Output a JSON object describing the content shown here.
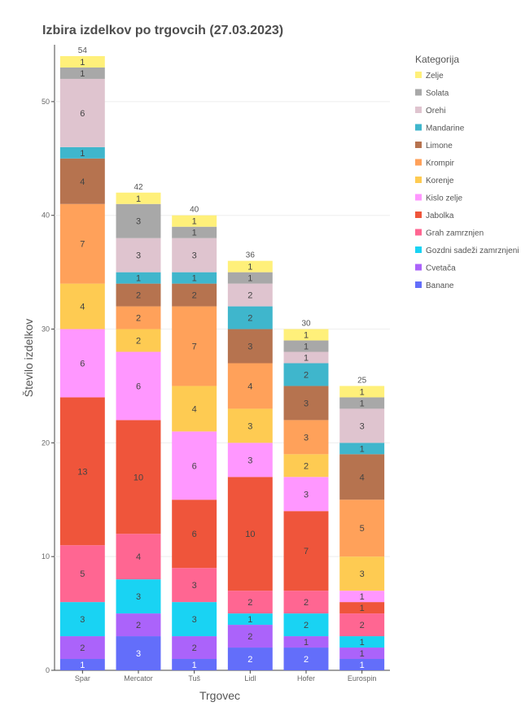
{
  "chart_data": {
    "type": "bar",
    "stacked": true,
    "title": "Izbira izdelkov po trgovcih (27.03.2023)",
    "xlabel": "Trgovec",
    "ylabel": "Število izdelkov",
    "ylim": [
      0,
      55
    ],
    "yticks": [
      0,
      10,
      20,
      30,
      40,
      50
    ],
    "grid": true,
    "legend_title": "Kategorija",
    "legend_position": "right",
    "categories": [
      "Spar",
      "Mercator",
      "Tuš",
      "Lidl",
      "Hofer",
      "Eurospin"
    ],
    "totals": [
      54,
      42,
      40,
      36,
      30,
      25
    ],
    "series": [
      {
        "name": "Banane",
        "color": "#636efa",
        "values": [
          1,
          3,
          1,
          2,
          2,
          1
        ]
      },
      {
        "name": "Cvetača",
        "color": "#ab63fa",
        "values": [
          2,
          2,
          2,
          2,
          1,
          1
        ]
      },
      {
        "name": "Gozdni sadeži zamrznjeni",
        "color": "#19d3f3",
        "values": [
          3,
          3,
          3,
          1,
          2,
          1
        ]
      },
      {
        "name": "Grah zamrznjen",
        "color": "#ff6692",
        "values": [
          5,
          4,
          3,
          2,
          2,
          2
        ]
      },
      {
        "name": "Jabolka",
        "color": "#ef553b",
        "values": [
          13,
          10,
          6,
          10,
          7,
          1
        ]
      },
      {
        "name": "Kislo zelje",
        "color": "#ff97ff",
        "values": [
          6,
          6,
          6,
          3,
          3,
          1
        ]
      },
      {
        "name": "Korenje",
        "color": "#fecb52",
        "values": [
          4,
          2,
          4,
          3,
          2,
          3
        ]
      },
      {
        "name": "Krompir",
        "color": "#ffa15a",
        "values": [
          7,
          2,
          7,
          4,
          3,
          5
        ]
      },
      {
        "name": "Limone",
        "color": "#b6734f",
        "values": [
          4,
          2,
          2,
          3,
          3,
          4
        ]
      },
      {
        "name": "Mandarine",
        "color": "#3fb6cc",
        "values": [
          1,
          1,
          1,
          2,
          2,
          1
        ]
      },
      {
        "name": "Orehi",
        "color": "#dfc4cf",
        "values": [
          6,
          3,
          3,
          2,
          1,
          3
        ]
      },
      {
        "name": "Solata",
        "color": "#a8a8a8",
        "values": [
          1,
          3,
          1,
          1,
          1,
          1
        ]
      },
      {
        "name": "Zelje",
        "color": "#fff07a",
        "values": [
          1,
          1,
          1,
          1,
          1,
          1
        ]
      }
    ]
  }
}
